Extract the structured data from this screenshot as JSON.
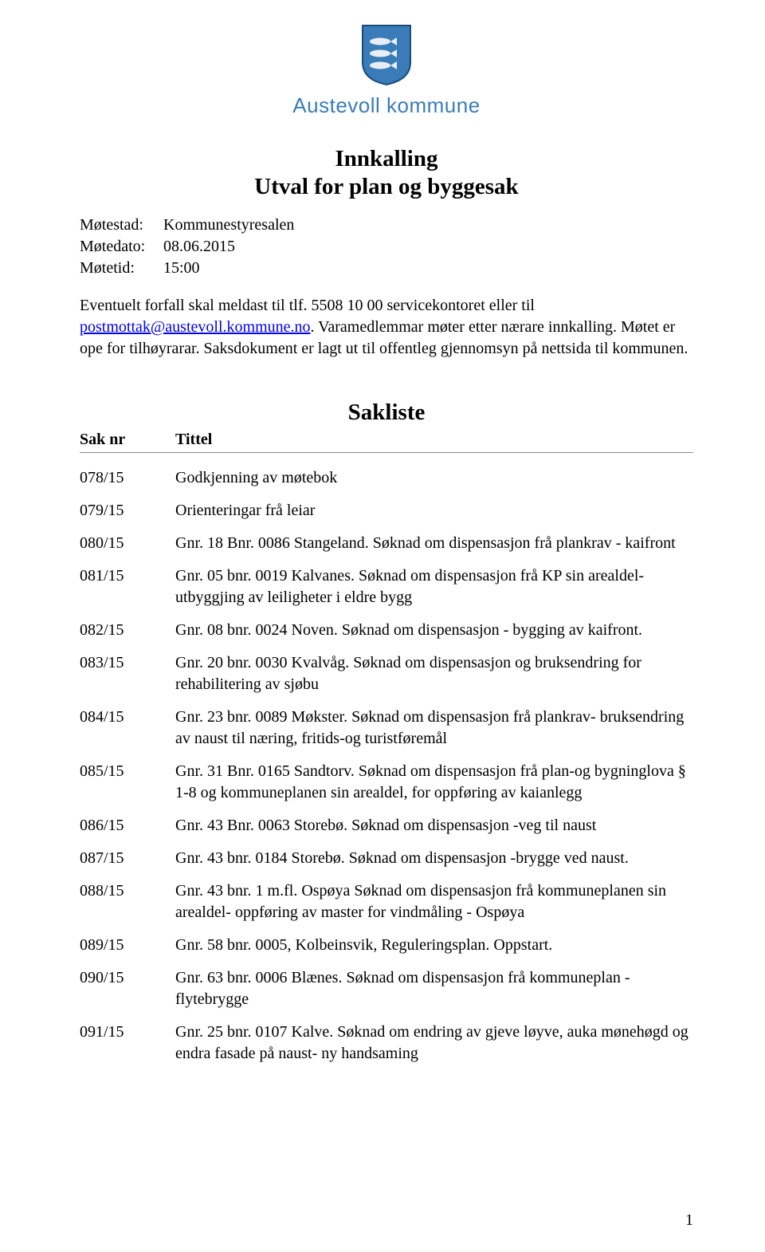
{
  "logo": {
    "org_name": "Austevoll kommune",
    "shield_bg": "#3a7cb8",
    "shield_border": "#1a4c78",
    "fish_color": "#e8eef5"
  },
  "title_line1": "Innkalling",
  "title_line2": "Utval for plan og byggesak",
  "meta": {
    "place_label": "Møtestad:",
    "place_value": "Kommunestyresalen",
    "date_label": "Møtedato:",
    "date_value": "08.06.2015",
    "time_label": "Møtetid:",
    "time_value": "15:00"
  },
  "body": {
    "pre_link": "Eventuelt forfall skal meldast til tlf. 5508 10 00 servicekontoret eller til ",
    "link_text": "postmottak@austevoll.kommune.no",
    "post_link": ". Varamedlemmar møter etter  nærare innkalling. Møtet er ope for tilhøyrarar. Saksdokument er lagt ut til offentleg gjennomsyn på nettsida til kommunen."
  },
  "sakliste": {
    "heading": "Sakliste",
    "col_nr": "Sak nr",
    "col_title": "Tittel",
    "rows": [
      {
        "nr": "078/15",
        "title": "Godkjenning av møtebok"
      },
      {
        "nr": "079/15",
        "title": "Orienteringar frå leiar"
      },
      {
        "nr": "080/15",
        "title": "Gnr. 18 Bnr. 0086 Stangeland. Søknad om dispensasjon frå plankrav - kaifront"
      },
      {
        "nr": "081/15",
        "title": "Gnr. 05 bnr. 0019 Kalvanes. Søknad om dispensasjon frå KP sin arealdel- utbyggjing av leiligheter i eldre bygg"
      },
      {
        "nr": "082/15",
        "title": "Gnr. 08 bnr. 0024 Noven. Søknad om dispensasjon - bygging av kaifront."
      },
      {
        "nr": "083/15",
        "title": "Gnr. 20 bnr. 0030 Kvalvåg. Søknad om dispensasjon og bruksendring for rehabilitering av sjøbu"
      },
      {
        "nr": "084/15",
        "title": "Gnr. 23 bnr. 0089 Møkster.  Søknad om dispensasjon frå plankrav- bruksendring av naust til næring, fritids-og turistføremål"
      },
      {
        "nr": "085/15",
        "title": "Gnr. 31 Bnr. 0165 Sandtorv. Søknad om dispensasjon frå plan-og bygninglova § 1-8 og kommuneplanen sin arealdel, for oppføring av kaianlegg"
      },
      {
        "nr": "086/15",
        "title": "Gnr. 43 Bnr. 0063 Storebø. Søknad om dispensasjon -veg til naust"
      },
      {
        "nr": "087/15",
        "title": "Gnr. 43 bnr. 0184 Storebø. Søknad om dispensasjon -brygge ved naust."
      },
      {
        "nr": "088/15",
        "title": "Gnr. 43 bnr. 1 m.fl. Ospøya Søknad om dispensasjon frå kommuneplanen sin arealdel- oppføring av master for vindmåling - Ospøya"
      },
      {
        "nr": "089/15",
        "title": "Gnr. 58 bnr. 0005, Kolbeinsvik, Reguleringsplan. Oppstart."
      },
      {
        "nr": "090/15",
        "title": "Gnr. 63 bnr. 0006 Blænes. Søknad om dispensasjon frå kommuneplan - flytebrygge"
      },
      {
        "nr": "091/15",
        "title": "Gnr. 25 bnr. 0107 Kalve. Søknad om endring av gjeve løyve, auka mønehøgd og endra fasade på naust- ny handsaming"
      }
    ]
  },
  "page_number": "1"
}
